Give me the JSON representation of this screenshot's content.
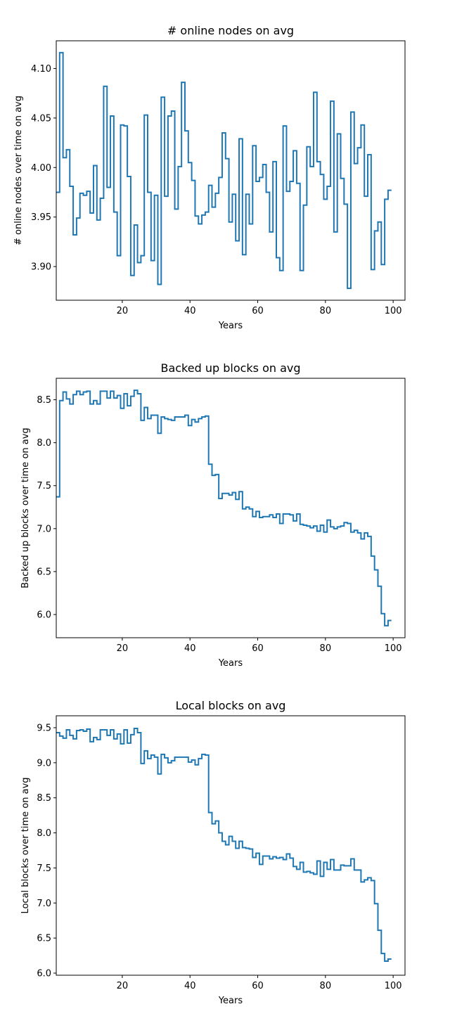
{
  "chart_data": [
    {
      "type": "line",
      "drawstyle": "steps",
      "title": "# online nodes on avg",
      "xlabel": "Years",
      "ylabel": "# online nodes over time on avg",
      "xlim": [
        0.5,
        103.5
      ],
      "ylim": [
        3.866,
        4.128
      ],
      "xticks": [
        20,
        40,
        60,
        80,
        100
      ],
      "yticks": [
        3.9,
        3.95,
        4.0,
        4.05,
        4.1
      ],
      "ytick_decimals": 2,
      "color": "#1f77b4",
      "x_start": 1,
      "values": [
        3.975,
        4.116,
        4.01,
        4.018,
        3.981,
        3.932,
        3.949,
        3.974,
        3.972,
        3.976,
        3.954,
        4.002,
        3.947,
        3.969,
        4.082,
        3.98,
        4.052,
        3.955,
        3.911,
        4.043,
        4.042,
        3.991,
        3.891,
        3.942,
        3.904,
        3.911,
        4.053,
        3.975,
        3.906,
        3.972,
        3.882,
        4.071,
        3.971,
        4.052,
        4.057,
        3.958,
        4.001,
        4.086,
        4.037,
        4.005,
        3.987,
        3.951,
        3.943,
        3.952,
        3.955,
        3.982,
        3.96,
        3.974,
        3.99,
        4.035,
        4.009,
        3.945,
        3.973,
        3.926,
        4.029,
        3.912,
        3.973,
        3.943,
        4.022,
        3.986,
        3.99,
        4.003,
        3.975,
        3.935,
        4.006,
        3.909,
        3.896,
        4.042,
        3.976,
        3.986,
        4.017,
        3.984,
        3.896,
        3.962,
        4.021,
        4.001,
        4.076,
        4.006,
        3.993,
        3.968,
        3.981,
        4.067,
        3.935,
        4.034,
        3.989,
        3.963,
        3.878,
        4.056,
        4.004,
        4.02,
        4.043,
        3.971,
        4.013,
        3.897,
        3.936,
        3.945,
        3.902,
        3.968,
        3.977
      ]
    },
    {
      "type": "line",
      "drawstyle": "steps",
      "title": "Backed up blocks on avg",
      "xlabel": "Years",
      "ylabel": "Backed up blocks over time on avg",
      "xlim": [
        0.5,
        103.5
      ],
      "ylim": [
        5.73,
        8.75
      ],
      "xticks": [
        20,
        40,
        60,
        80,
        100
      ],
      "yticks": [
        6.0,
        6.5,
        7.0,
        7.5,
        8.0,
        8.5
      ],
      "ytick_decimals": 1,
      "color": "#1f77b4",
      "x_start": 1,
      "values": [
        7.37,
        8.49,
        8.59,
        8.51,
        8.45,
        8.56,
        8.6,
        8.56,
        8.59,
        8.6,
        8.45,
        8.49,
        8.45,
        8.6,
        8.6,
        8.52,
        8.6,
        8.52,
        8.55,
        8.4,
        8.57,
        8.43,
        8.54,
        8.61,
        8.57,
        8.26,
        8.41,
        8.28,
        8.32,
        8.32,
        8.11,
        8.3,
        8.28,
        8.27,
        8.26,
        8.3,
        8.3,
        8.3,
        8.32,
        8.2,
        8.27,
        8.24,
        8.28,
        8.3,
        8.31,
        7.75,
        7.62,
        7.63,
        7.35,
        7.41,
        7.41,
        7.39,
        7.42,
        7.34,
        7.43,
        7.23,
        7.25,
        7.23,
        7.14,
        7.2,
        7.13,
        7.14,
        7.14,
        7.16,
        7.13,
        7.17,
        7.06,
        7.17,
        7.17,
        7.16,
        7.09,
        7.17,
        7.05,
        7.04,
        7.03,
        7.01,
        7.03,
        6.97,
        7.04,
        6.96,
        7.1,
        7.02,
        7.0,
        7.02,
        7.03,
        7.07,
        7.06,
        6.96,
        6.98,
        6.95,
        6.88,
        6.95,
        6.91,
        6.68,
        6.52,
        6.33,
        6.01,
        5.87,
        5.93
      ]
    },
    {
      "type": "line",
      "drawstyle": "steps",
      "title": "Local blocks on avg",
      "xlabel": "Years",
      "ylabel": "Local blocks over time on avg",
      "xlim": [
        0.5,
        103.5
      ],
      "ylim": [
        5.97,
        9.67
      ],
      "xticks": [
        20,
        40,
        60,
        80,
        100
      ],
      "yticks": [
        6.0,
        6.5,
        7.0,
        7.5,
        8.0,
        8.5,
        9.0,
        9.5
      ],
      "ytick_decimals": 1,
      "color": "#1f77b4",
      "x_start": 1,
      "values": [
        9.43,
        9.38,
        9.35,
        9.47,
        9.39,
        9.34,
        9.46,
        9.47,
        9.45,
        9.48,
        9.3,
        9.36,
        9.33,
        9.47,
        9.47,
        9.39,
        9.47,
        9.34,
        9.41,
        9.27,
        9.47,
        9.28,
        9.4,
        9.49,
        9.43,
        8.99,
        9.17,
        9.06,
        9.11,
        9.08,
        8.84,
        9.12,
        9.07,
        9.0,
        9.03,
        9.08,
        9.08,
        9.08,
        9.08,
        9.01,
        9.04,
        8.97,
        9.06,
        9.12,
        9.11,
        8.29,
        8.13,
        8.17,
        8.0,
        7.88,
        7.83,
        7.95,
        7.88,
        7.78,
        7.88,
        7.79,
        7.78,
        7.77,
        7.65,
        7.71,
        7.55,
        7.67,
        7.67,
        7.63,
        7.66,
        7.64,
        7.65,
        7.62,
        7.7,
        7.64,
        7.52,
        7.48,
        7.58,
        7.44,
        7.45,
        7.43,
        7.41,
        7.6,
        7.38,
        7.58,
        7.48,
        7.62,
        7.47,
        7.47,
        7.54,
        7.53,
        7.53,
        7.63,
        7.47,
        7.47,
        7.3,
        7.33,
        7.36,
        7.32,
        6.99,
        6.61,
        6.28,
        6.17,
        6.2
      ]
    }
  ]
}
